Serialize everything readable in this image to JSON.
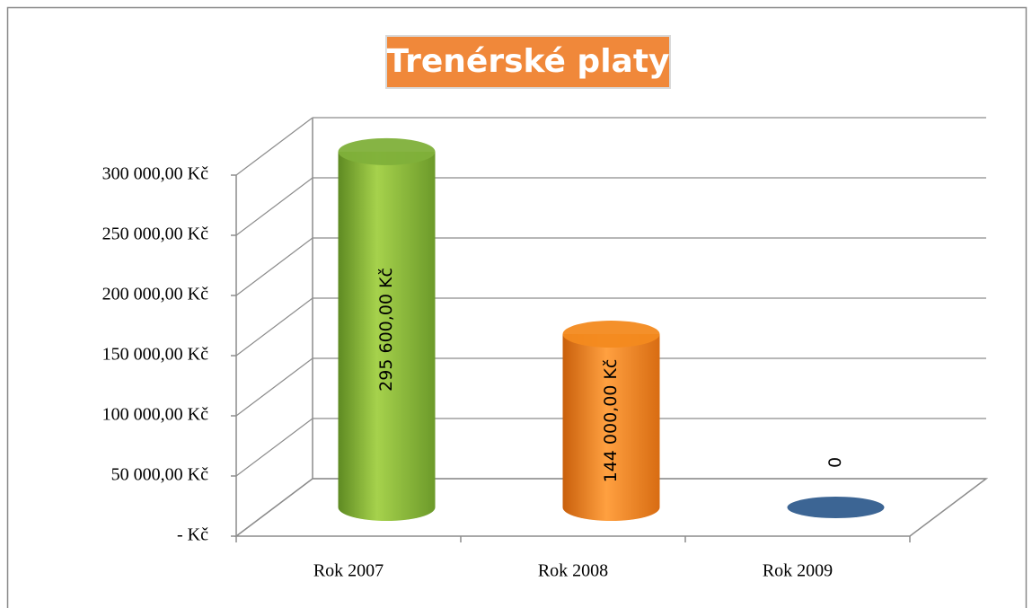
{
  "chart_data": {
    "type": "bar3d",
    "title": "Trenérské platy",
    "categories": [
      "Rok 2007",
      "Rok 2008",
      "Rok 2009"
    ],
    "values": [
      295600,
      144000,
      0
    ],
    "value_labels": [
      "295 600,00 Kč",
      "144 000,00 Kč",
      "0"
    ],
    "colors": [
      "#7fb03a",
      "#f38a1f",
      "#3c6594"
    ],
    "ylim": [
      0,
      300000
    ],
    "yticks": [
      {
        "value": 0,
        "label": "-  Kč"
      },
      {
        "value": 50000,
        "label": "50 000,00 Kč"
      },
      {
        "value": 100000,
        "label": "100 000,00 Kč"
      },
      {
        "value": 150000,
        "label": "150 000,00 Kč"
      },
      {
        "value": 200000,
        "label": "200 000,00 Kč"
      },
      {
        "value": 250000,
        "label": "250 000,00 Kč"
      },
      {
        "value": 300000,
        "label": "300 000,00 Kč"
      }
    ],
    "grid": true
  }
}
